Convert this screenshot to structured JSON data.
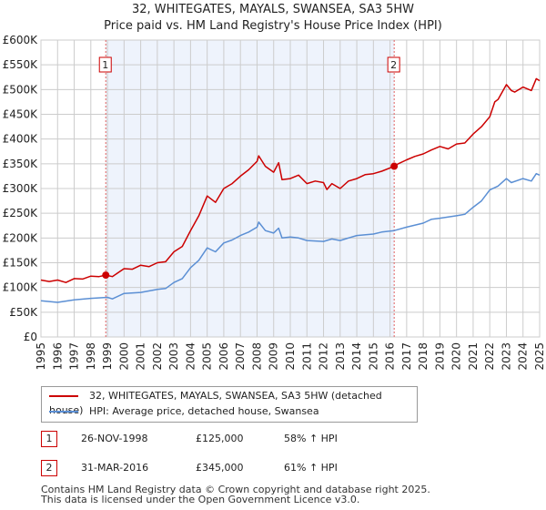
{
  "title": {
    "line1": "32, WHITEGATES, MAYALS, SWANSEA, SA3 5HW",
    "line2": "Price paid vs. HM Land Registry's House Price Index (HPI)"
  },
  "chart_data": {
    "type": "line",
    "title": "32, WHITEGATES, MAYALS, SWANSEA, SA3 5HW — Price paid vs. HM Land Registry's House Price Index (HPI)",
    "xlim": [
      1995,
      2025
    ],
    "ylim": [
      0,
      600000
    ],
    "x_ticks": [
      "1995",
      "1996",
      "1997",
      "1998",
      "1999",
      "2000",
      "2001",
      "2002",
      "2003",
      "2004",
      "2005",
      "2006",
      "2007",
      "2008",
      "2009",
      "2010",
      "2011",
      "2012",
      "2013",
      "2014",
      "2015",
      "2016",
      "2017",
      "2018",
      "2019",
      "2020",
      "2021",
      "2022",
      "2023",
      "2024",
      "2025"
    ],
    "y_ticks": [
      {
        "v": 0,
        "label": "£0"
      },
      {
        "v": 50000,
        "label": "£50K"
      },
      {
        "v": 100000,
        "label": "£100K"
      },
      {
        "v": 150000,
        "label": "£150K"
      },
      {
        "v": 200000,
        "label": "£200K"
      },
      {
        "v": 250000,
        "label": "£250K"
      },
      {
        "v": 300000,
        "label": "£300K"
      },
      {
        "v": 350000,
        "label": "£350K"
      },
      {
        "v": 400000,
        "label": "£400K"
      },
      {
        "v": 450000,
        "label": "£450K"
      },
      {
        "v": 500000,
        "label": "£500K"
      },
      {
        "v": 550000,
        "label": "£550K"
      },
      {
        "v": 600000,
        "label": "£600K"
      }
    ],
    "grid": true,
    "shaded_range": [
      1998.9,
      2016.25
    ],
    "series": [
      {
        "name": "32, WHITEGATES, MAYALS, SWANSEA, SA3 5HW (detached house)",
        "color": "#cc0000",
        "x": [
          1995,
          1995.5,
          1996,
          1996.5,
          1997,
          1997.5,
          1998,
          1998.5,
          1998.9,
          1999.3,
          2000,
          2000.5,
          2001,
          2001.5,
          2002,
          2002.5,
          2003,
          2003.5,
          2004,
          2004.5,
          2005,
          2005.5,
          2006,
          2006.5,
          2007,
          2007.5,
          2008,
          2008.1,
          2008.5,
          2009,
          2009.3,
          2009.5,
          2010,
          2010.5,
          2011,
          2011.5,
          2012,
          2012.2,
          2012.5,
          2013,
          2013.5,
          2014,
          2014.5,
          2015,
          2015.5,
          2016.25,
          2016.5,
          2017,
          2017.5,
          2018,
          2018.5,
          2019,
          2019.5,
          2020,
          2020.5,
          2021,
          2021.5,
          2022,
          2022.3,
          2022.5,
          2023,
          2023.3,
          2023.5,
          2024,
          2024.5,
          2024.8,
          2025
        ],
        "values": [
          115000,
          112000,
          115000,
          110000,
          118000,
          117000,
          123000,
          122000,
          125000,
          122000,
          138000,
          137000,
          145000,
          142000,
          150000,
          152000,
          172000,
          183000,
          215000,
          245000,
          285000,
          272000,
          300000,
          310000,
          325000,
          338000,
          355000,
          366000,
          345000,
          333000,
          352000,
          318000,
          320000,
          327000,
          310000,
          315000,
          312000,
          298000,
          310000,
          300000,
          315000,
          320000,
          328000,
          330000,
          335000,
          345000,
          350000,
          358000,
          365000,
          370000,
          378000,
          385000,
          380000,
          390000,
          392000,
          410000,
          425000,
          445000,
          475000,
          480000,
          510000,
          498000,
          495000,
          505000,
          498000,
          522000,
          518000
        ]
      },
      {
        "name": "HPI: Average price, detached house, Swansea",
        "color": "#5b8fd4",
        "x": [
          1995,
          1996,
          1997,
          1998,
          1999,
          1999.3,
          2000,
          2001,
          2002,
          2002.5,
          2003,
          2003.5,
          2004,
          2004.5,
          2005,
          2005.5,
          2006,
          2006.5,
          2007,
          2007.5,
          2008,
          2008.1,
          2008.5,
          2009,
          2009.3,
          2009.5,
          2010,
          2010.5,
          2011,
          2012,
          2012.5,
          2013,
          2013.5,
          2014,
          2015,
          2015.5,
          2016.25,
          2017,
          2018,
          2018.5,
          2019,
          2020,
          2020.5,
          2021,
          2021.5,
          2022,
          2022.5,
          2023,
          2023.3,
          2024,
          2024.5,
          2024.8,
          2025
        ],
        "values": [
          73000,
          70000,
          75000,
          78000,
          80000,
          77000,
          88000,
          90000,
          96000,
          98000,
          110000,
          118000,
          140000,
          155000,
          180000,
          172000,
          190000,
          196000,
          205000,
          212000,
          222000,
          232000,
          215000,
          210000,
          220000,
          200000,
          202000,
          200000,
          195000,
          193000,
          198000,
          195000,
          200000,
          205000,
          208000,
          212000,
          215000,
          222000,
          230000,
          238000,
          240000,
          245000,
          248000,
          262000,
          275000,
          297000,
          305000,
          320000,
          312000,
          320000,
          315000,
          330000,
          327000
        ]
      }
    ],
    "annotations": [
      {
        "label": "1",
        "x": 1998.9,
        "value": 125000
      },
      {
        "label": "2",
        "x": 2016.25,
        "value": 345000
      }
    ],
    "legend_placement": "bottom"
  },
  "legend": {
    "red": "32, WHITEGATES, MAYALS, SWANSEA, SA3 5HW (detached house)",
    "blue": "HPI: Average price, detached house, Swansea"
  },
  "transactions": [
    {
      "num": "1",
      "date": "26-NOV-1998",
      "price": "£125,000",
      "hpi": "58% ↑ HPI"
    },
    {
      "num": "2",
      "date": "31-MAR-2016",
      "price": "£345,000",
      "hpi": "61% ↑ HPI"
    }
  ],
  "footer": {
    "line1": "Contains HM Land Registry data © Crown copyright and database right 2025.",
    "line2": "This data is licensed under the Open Government Licence v3.0."
  }
}
